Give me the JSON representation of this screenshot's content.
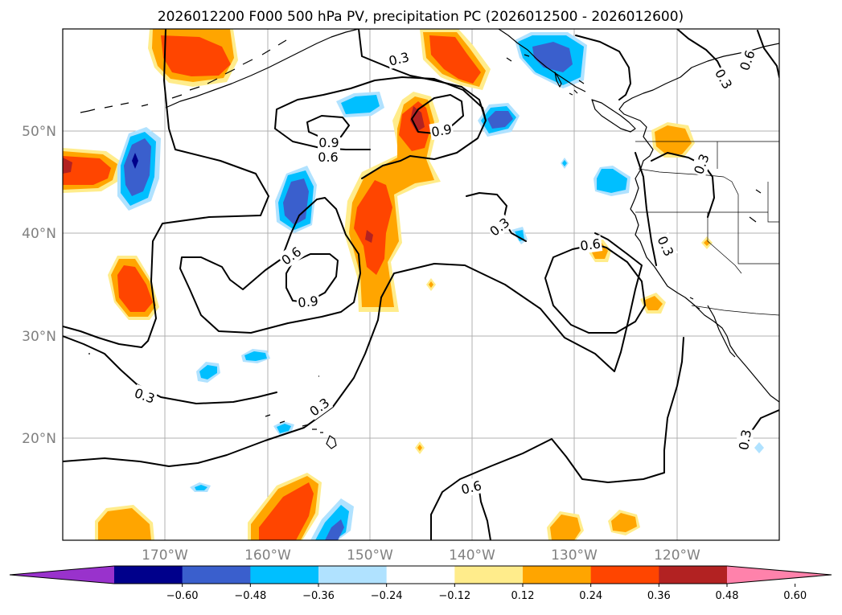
{
  "title": "2026012200 F000 500 hPa PV, precipitation PC (2026012500 - 2026012600)",
  "map": {
    "lat_labels": [
      "50°N",
      "40°N",
      "30°N",
      "20°N"
    ],
    "lon_labels": [
      "170°W",
      "160°W",
      "150°W",
      "140°W",
      "130°W",
      "120°W"
    ],
    "gridlines": true,
    "contour_labels": [
      "0.3",
      "0.6",
      "0.9"
    ]
  },
  "colorbar": {
    "tick_labels": [
      "−0.60",
      "−0.48",
      "−0.36",
      "−0.24",
      "−0.12",
      "0.12",
      "0.24",
      "0.36",
      "0.48",
      "0.60"
    ],
    "colors": {
      "under": "#9932cc",
      "bins": [
        "#00008b",
        "#3a5fcd",
        "#00bfff",
        "#b0e2ff",
        "#ffffff",
        "#ffec8b",
        "#ffa500",
        "#ff4500",
        "#b22222",
        "#ff82ab"
      ]
    }
  }
}
